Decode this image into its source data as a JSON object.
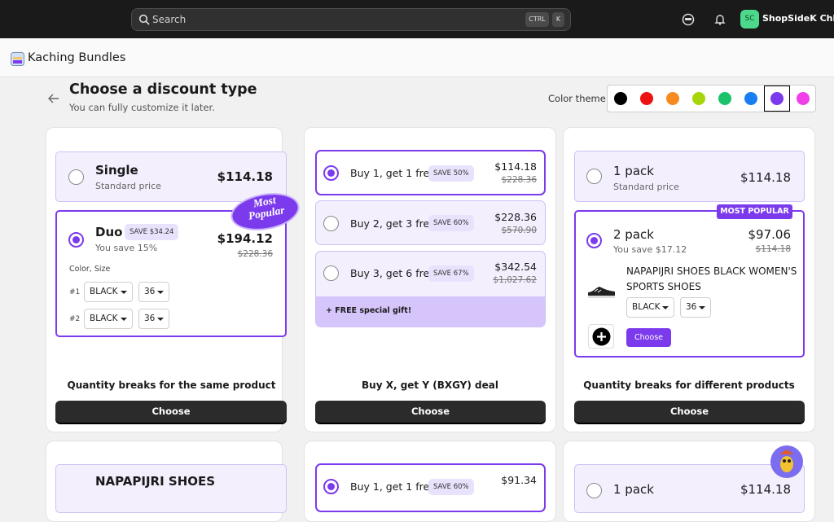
{
  "topbar": {
    "search": "Search",
    "shortcut": [
      "CTRL",
      "K"
    ],
    "avatar": "SC",
    "store": "ShopSideK Chloe"
  },
  "app": {
    "name": "Kaching Bundles"
  },
  "page": {
    "title": "Choose a discount type",
    "subtitle": "You can fully customize it later.",
    "color_theme": {
      "label": "Color theme",
      "colors": [
        "#000000",
        "#ee1111",
        "#f68b1f",
        "#a6d609",
        "#19c26b",
        "#1a7ef2",
        "#7c3aed",
        "#f03ee8"
      ],
      "selected": 6
    }
  },
  "cards": [
    {
      "options": [
        {
          "title": "Single",
          "subtitle": "Standard price",
          "price": "$114.18"
        },
        {
          "title": "Duo",
          "badge": "SAVE $34.24",
          "subtitle": "You save 15%",
          "price": "$194.12",
          "compare": "$228.36",
          "variants_label": "Color, Size",
          "variants": [
            {
              "index": "#1",
              "color": "BLACK",
              "size": "36"
            },
            {
              "index": "#2",
              "color": "BLACK",
              "size": "36"
            }
          ]
        }
      ],
      "sticker": "Most Popular",
      "label": "Quantity breaks for the same product",
      "button": "Choose"
    },
    {
      "options": [
        {
          "title": "Buy 1, get 1 free",
          "badge": "SAVE 50%",
          "price": "$114.18",
          "compare": "$228.36"
        },
        {
          "title": "Buy 2, get 3 free",
          "badge": "SAVE 60%",
          "price": "$228.36",
          "compare": "$570.90"
        },
        {
          "title": "Buy 3, get 6 free",
          "badge": "SAVE 67%",
          "price": "$342.54",
          "compare": "$1,027.62"
        }
      ],
      "gift": "+ FREE special gift!",
      "label": "Buy X, get Y (BXGY) deal",
      "button": "Choose"
    },
    {
      "options": [
        {
          "title": "1 pack",
          "subtitle": "Standard price",
          "price": "$114.18"
        },
        {
          "title": "2 pack",
          "subtitle": "You save $17.12",
          "price": "$97.06",
          "compare": "$114.18",
          "product": "NAPAPIJRI SHOES BLACK WOMEN'S SPORTS SHOES",
          "color": "BLACK",
          "size": "36",
          "button": "Choose"
        }
      ],
      "tag": "MOST POPULAR",
      "label": "Quantity breaks for different products",
      "button": "Choose"
    }
  ],
  "more_cards": [
    {
      "title": "NAPAPIJRI SHOES"
    },
    {
      "title": "Buy 1, get 1 free",
      "badge": "SAVE 60%",
      "price": "$91.34"
    },
    {
      "title": "1 pack",
      "price": "$114.18"
    }
  ]
}
